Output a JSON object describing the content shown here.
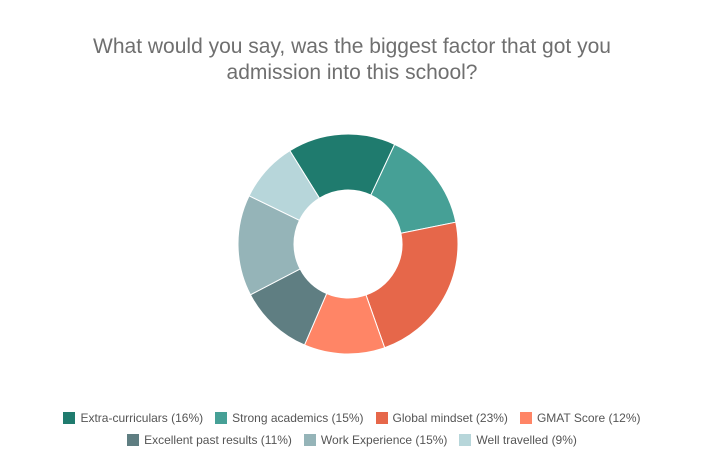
{
  "chart_data": {
    "type": "pie",
    "title_lines": [
      "What would you say, was the biggest factor that got you",
      "admission into this school?"
    ],
    "categories": [
      "Extra-curriculars",
      "Strong academics",
      "Global mindset",
      "GMAT Score",
      "Excellent past results",
      "Work Experience",
      "Well travelled"
    ],
    "values": [
      16,
      15,
      23,
      12,
      11,
      15,
      9
    ],
    "legend_labels": [
      "Extra-curriculars (16%)",
      "Strong academics (15%)",
      "Global mindset (23%)",
      "GMAT Score (12%)",
      "Excellent past results (11%)",
      "Work Experience (15%)",
      "Well travelled (9%)"
    ],
    "colors": [
      "#1f7b6e",
      "#46a096",
      "#e6674a",
      "#ff8566",
      "#5f7e82",
      "#95b4b8",
      "#b7d6da"
    ],
    "legend_placement": "bottom"
  }
}
